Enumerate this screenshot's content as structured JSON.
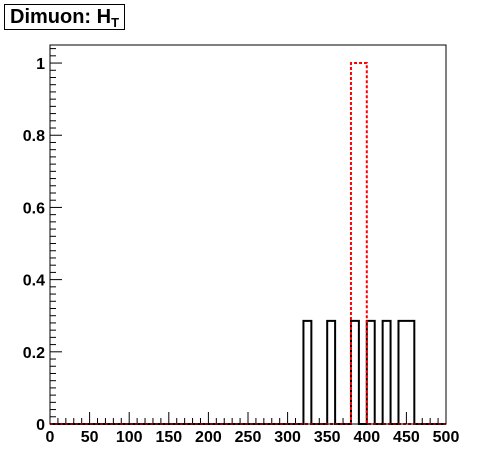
{
  "title": {
    "main": "Dimuon: H",
    "sub": "T"
  },
  "chart_data": {
    "type": "bar",
    "style": "step-histogram",
    "title": "Dimuon: H_T",
    "xlabel": "",
    "ylabel": "",
    "xlim": [
      0,
      500
    ],
    "ylim": [
      0,
      1.05
    ],
    "grid": false,
    "legend": "none",
    "x_ticks": [
      0,
      50,
      100,
      150,
      200,
      250,
      300,
      350,
      400,
      450,
      500
    ],
    "x_tick_labels": [
      "0",
      "50",
      "100",
      "150",
      "200",
      "250",
      "300",
      "350",
      "400",
      "450",
      "500"
    ],
    "y_ticks": [
      0,
      0.2,
      0.4,
      0.6,
      0.8,
      1
    ],
    "y_tick_labels": [
      "0",
      "0.2",
      "0.4",
      "0.6",
      "0.8",
      "1"
    ],
    "bin_width": 10,
    "series": [
      {
        "style": "solid",
        "color": "#000000",
        "bin_lows": [
          320,
          350,
          380,
          400,
          420,
          440,
          450
        ],
        "values": [
          0.2857,
          0.2857,
          0.2857,
          0.2857,
          0.2857,
          0.2857,
          0.2857
        ]
      },
      {
        "style": "dashed",
        "color": "#ff0000",
        "bin_lows": [
          380,
          390
        ],
        "values": [
          1.0,
          1.0
        ]
      }
    ]
  }
}
